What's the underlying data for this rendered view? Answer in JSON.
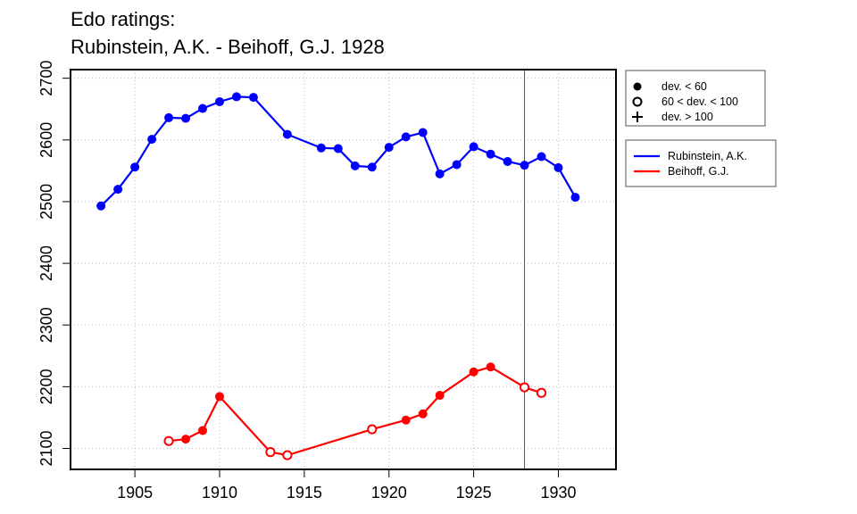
{
  "chart_data": {
    "type": "line",
    "title_line1": "Edo ratings:",
    "title_line2": "Rubinstein, A.K. - Beihoff, G.J. 1928",
    "xlabel": "",
    "ylabel": "",
    "xlim": [
      1901.2,
      1933.4
    ],
    "ylim": [
      2066,
      2714
    ],
    "x_ticks": [
      1905,
      1910,
      1915,
      1920,
      1925,
      1930
    ],
    "y_ticks": [
      2100,
      2200,
      2300,
      2400,
      2500,
      2600,
      2700
    ],
    "grid": true,
    "marker_year": 1928,
    "symbol_legend": {
      "position": "top-right",
      "items": [
        {
          "symbol": "filled-circle",
          "label": "dev. < 60"
        },
        {
          "symbol": "open-circle",
          "label": "60 < dev. < 100"
        },
        {
          "symbol": "plus",
          "label": "dev. > 100"
        }
      ]
    },
    "series_legend": {
      "position": "right",
      "items": [
        {
          "label": "Rubinstein, A.K.",
          "color": "#0000ff"
        },
        {
          "label": "Beihoff, G.J.",
          "color": "#ff0000"
        }
      ]
    },
    "series": [
      {
        "name": "Rubinstein, A.K.",
        "color": "#0000ff",
        "points": [
          {
            "x": 1903,
            "y": 2493,
            "dev": "filled"
          },
          {
            "x": 1904,
            "y": 2520,
            "dev": "filled"
          },
          {
            "x": 1905,
            "y": 2556,
            "dev": "filled"
          },
          {
            "x": 1906,
            "y": 2601,
            "dev": "filled"
          },
          {
            "x": 1907,
            "y": 2636,
            "dev": "filled"
          },
          {
            "x": 1908,
            "y": 2635,
            "dev": "filled"
          },
          {
            "x": 1909,
            "y": 2651,
            "dev": "filled"
          },
          {
            "x": 1910,
            "y": 2662,
            "dev": "filled"
          },
          {
            "x": 1911,
            "y": 2670,
            "dev": "filled"
          },
          {
            "x": 1912,
            "y": 2669,
            "dev": "filled"
          },
          {
            "x": 1914,
            "y": 2609,
            "dev": "filled"
          },
          {
            "x": 1916,
            "y": 2587,
            "dev": "filled"
          },
          {
            "x": 1917,
            "y": 2586,
            "dev": "filled"
          },
          {
            "x": 1918,
            "y": 2558,
            "dev": "filled"
          },
          {
            "x": 1919,
            "y": 2556,
            "dev": "filled"
          },
          {
            "x": 1920,
            "y": 2588,
            "dev": "filled"
          },
          {
            "x": 1921,
            "y": 2605,
            "dev": "filled"
          },
          {
            "x": 1922,
            "y": 2612,
            "dev": "filled"
          },
          {
            "x": 1923,
            "y": 2545,
            "dev": "filled"
          },
          {
            "x": 1924,
            "y": 2560,
            "dev": "filled"
          },
          {
            "x": 1925,
            "y": 2589,
            "dev": "filled"
          },
          {
            "x": 1926,
            "y": 2577,
            "dev": "filled"
          },
          {
            "x": 1927,
            "y": 2565,
            "dev": "filled"
          },
          {
            "x": 1928,
            "y": 2559,
            "dev": "filled"
          },
          {
            "x": 1929,
            "y": 2573,
            "dev": "filled"
          },
          {
            "x": 1930,
            "y": 2555,
            "dev": "filled"
          },
          {
            "x": 1931,
            "y": 2507,
            "dev": "filled"
          }
        ]
      },
      {
        "name": "Beihoff, G.J.",
        "color": "#ff0000",
        "points": [
          {
            "x": 1907,
            "y": 2112,
            "dev": "open"
          },
          {
            "x": 1908,
            "y": 2115,
            "dev": "filled"
          },
          {
            "x": 1909,
            "y": 2129,
            "dev": "filled"
          },
          {
            "x": 1910,
            "y": 2184,
            "dev": "filled"
          },
          {
            "x": 1913,
            "y": 2094,
            "dev": "open"
          },
          {
            "x": 1914,
            "y": 2089,
            "dev": "open"
          },
          {
            "x": 1919,
            "y": 2131,
            "dev": "open"
          },
          {
            "x": 1921,
            "y": 2146,
            "dev": "filled"
          },
          {
            "x": 1922,
            "y": 2156,
            "dev": "filled"
          },
          {
            "x": 1923,
            "y": 2186,
            "dev": "filled"
          },
          {
            "x": 1925,
            "y": 2224,
            "dev": "filled"
          },
          {
            "x": 1926,
            "y": 2232,
            "dev": "filled"
          },
          {
            "x": 1928,
            "y": 2199,
            "dev": "open"
          },
          {
            "x": 1929,
            "y": 2190,
            "dev": "open"
          }
        ]
      }
    ]
  }
}
